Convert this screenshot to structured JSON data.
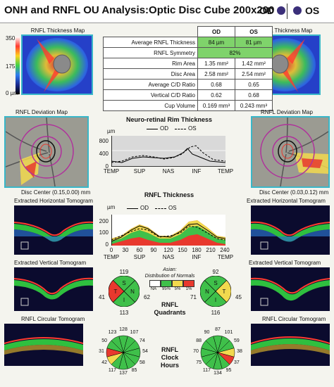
{
  "header": {
    "title": "ONH and RNFL OU Analysis:Optic Disc Cube 200x200",
    "od_label": "OD",
    "os_label": "OS"
  },
  "colors": {
    "accent": "#39b7c9",
    "normal_green": "#7fd36b",
    "border_red": "#f2d94e",
    "outside_red": "#e8392e"
  },
  "left": {
    "thickness_map_title": "RNFL Thickness Map",
    "scale_max": "350",
    "scale_mid": "175",
    "scale_min": "0 µm",
    "deviation_map_title": "RNFL Deviation Map",
    "disc_center": "Disc Center  (0.15,0.00) mm",
    "horizontal_title": "Extracted Horizontal Tomogram",
    "vertical_title": "Extracted Vertical Tomogram",
    "circular_title": "RNFL Circular Tomogram"
  },
  "right": {
    "thickness_map_title": "RNFL Thickness Map",
    "deviation_map_title": "RNFL Deviation Map",
    "disc_center": "Disc Center  (0.03,0.12) mm",
    "horizontal_title": "Extracted Horizontal Tomogram",
    "vertical_title": "Extracted Vertical Tomogram",
    "circular_title": "RNFL Circular Tomogram"
  },
  "table": {
    "col_od": "OD",
    "col_os": "OS",
    "rows": [
      {
        "label": "Average RNFL Thickness",
        "od": "84 µm",
        "os": "81 µm"
      },
      {
        "label": "RNFL Symmetry",
        "span": "82%"
      },
      {
        "label": "Rim Area",
        "od": "1.35 mm²",
        "os": "1.42 mm²"
      },
      {
        "label": "Disc Area",
        "od": "2.58 mm²",
        "os": "2.54 mm²"
      },
      {
        "label": "Average C/D Ratio",
        "od": "0.68",
        "os": "0.65"
      },
      {
        "label": "Vertical C/D Ratio",
        "od": "0.62",
        "os": "0.68"
      },
      {
        "label": "Cup Volume",
        "od": "0.169 mm³",
        "os": "0.243 mm³"
      }
    ]
  },
  "rim_chart": {
    "title": "Neuro-retinal Rim Thickness",
    "unit": "µm",
    "legend_od": "OD",
    "legend_os": "OS",
    "y_ticks": [
      "800",
      "400",
      "0"
    ],
    "x_ticks": [
      "TEMP",
      "SUP",
      "NAS",
      "INF",
      "TEMP"
    ]
  },
  "rnfl_chart": {
    "title": "RNFL Thickness",
    "unit": "µm",
    "legend_od": "OD",
    "legend_os": "OS",
    "y_ticks": [
      "200",
      "100",
      "0"
    ],
    "x_ticks": [
      "0",
      "30",
      "60",
      "90",
      "120",
      "150",
      "180",
      "210",
      "240"
    ],
    "x_sectors": [
      "TEMP",
      "SUP",
      "NAS",
      "INF",
      "TEMP"
    ]
  },
  "legend": {
    "title_line1": "Asian:",
    "title_line2": "Distribution of Normals",
    "items": [
      "NA",
      "95%",
      "5%",
      "1%"
    ]
  },
  "quadrants": {
    "label_line1": "RNFL",
    "label_line2": "Quadrants",
    "od": {
      "top": "119",
      "left": "41",
      "right": "62",
      "bottom": "113",
      "S": "S",
      "T": "T",
      "N": "N",
      "I": "I"
    },
    "os": {
      "top": "92",
      "left": "71",
      "right": "45",
      "bottom": "116",
      "S": "S",
      "N": "N",
      "T": "T",
      "I": "I"
    }
  },
  "clock": {
    "label_line1": "RNFL",
    "label_line2": "Clock",
    "label_line3": "Hours",
    "od": [
      "128",
      "107",
      "74",
      "54",
      "58",
      "85",
      "137",
      "117",
      "42",
      "31",
      "50",
      "123"
    ],
    "os": [
      "87",
      "101",
      "59",
      "38",
      "37",
      "95",
      "134",
      "117",
      "75",
      "70",
      "88",
      "90"
    ]
  }
}
